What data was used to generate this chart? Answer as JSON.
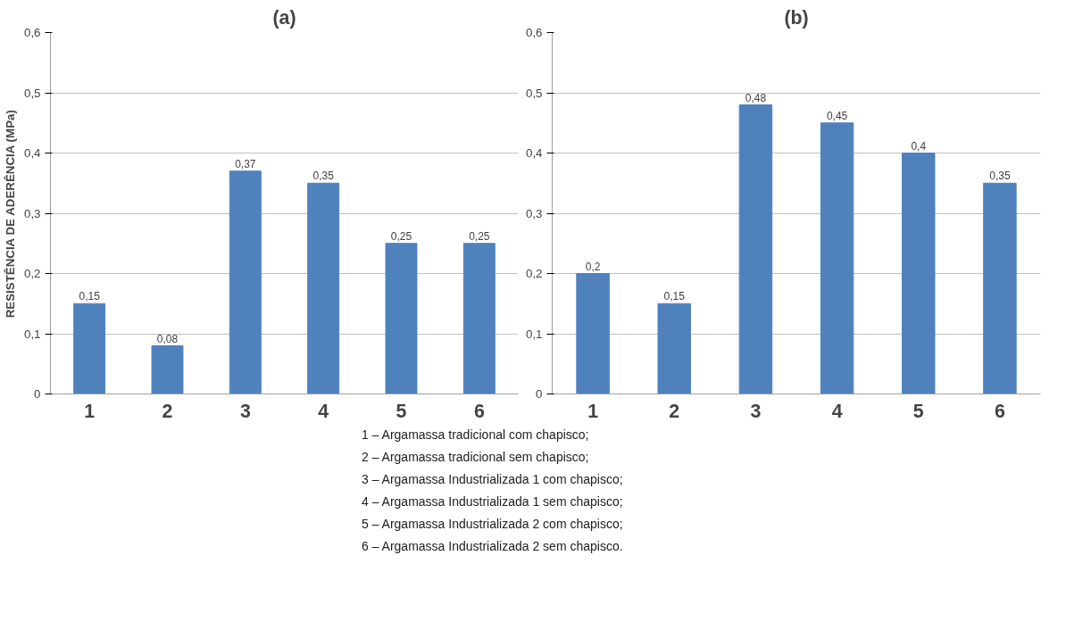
{
  "chart_data": [
    {
      "type": "bar",
      "title": "(a)",
      "ylabel": "RESISTÊNCIA DE ADERÊNCIA (MPa)",
      "categories": [
        "1",
        "2",
        "3",
        "4",
        "5",
        "6"
      ],
      "values": [
        0.15,
        0.08,
        0.37,
        0.35,
        0.25,
        0.25
      ],
      "value_labels": [
        "0,15",
        "0,08",
        "0,37",
        "0,35",
        "0,25",
        "0,25"
      ],
      "color": "#4f81bd",
      "ylim": [
        0,
        0.6
      ],
      "yticks": [
        0,
        {
          "value": 0.1,
          "label": "0,1"
        },
        {
          "value": 0.2,
          "label": "0,2"
        },
        {
          "value": 0.3,
          "label": "0,3"
        },
        {
          "value": 0.4,
          "label": "0,4"
        },
        {
          "value": 0.5,
          "label": "0,5"
        },
        {
          "value": 0.6,
          "label": "0,6"
        }
      ],
      "grid": "y",
      "annotations": [
        "1 – Argamassa tradicional com chapisco;",
        "2 – Argamassa tradicional sem chapisco;",
        "3 – Argamassa Industrializada 1 com chapisco;",
        "4 – Argamassa Industrializada 1 sem chapisco;",
        "5 – Argamassa Industrializada 2 com chapisco;",
        "6 – Argamassa Industrializada 2 sem chapisco."
      ]
    },
    {
      "type": "bar",
      "title": "(b)",
      "categories": [
        "1",
        "2",
        "3",
        "4",
        "5",
        "6"
      ],
      "values": [
        0.2,
        0.15,
        0.48,
        0.45,
        0.4,
        0.35
      ],
      "value_labels": [
        "0,2",
        "0,15",
        "0,48",
        "0,45",
        "0,4",
        "0,35"
      ],
      "color": "#4f81bd",
      "ylim": [
        0,
        0.6
      ],
      "yticks": [
        0,
        {
          "value": 0.1,
          "label": "0,1"
        },
        {
          "value": 0.2,
          "label": "0,2"
        },
        {
          "value": 0.3,
          "label": "0,3"
        },
        {
          "value": 0.4,
          "label": "0,4"
        },
        {
          "value": 0.5,
          "label": "0,5"
        },
        {
          "value": 0.6,
          "label": "0,6"
        }
      ],
      "grid": "y"
    }
  ]
}
